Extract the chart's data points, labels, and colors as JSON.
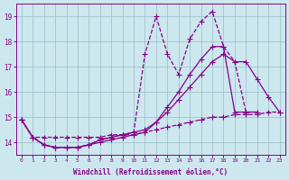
{
  "xlabel": "Windchill (Refroidissement éolien,°C)",
  "bg_color": "#cce8ee",
  "grid_color": "#99bbc8",
  "line_color": "#880088",
  "ylim": [
    13.5,
    19.5
  ],
  "xlim": [
    -0.5,
    23.5
  ],
  "yticks": [
    14,
    15,
    16,
    17,
    18,
    19
  ],
  "xticks": [
    0,
    1,
    2,
    3,
    4,
    5,
    6,
    7,
    8,
    9,
    10,
    11,
    12,
    13,
    14,
    15,
    16,
    17,
    18,
    19,
    20,
    21,
    22,
    23
  ],
  "series": [
    {
      "x": [
        0,
        1,
        2,
        3,
        4,
        5,
        6,
        7,
        8,
        9,
        10,
        11,
        12,
        13,
        14,
        15,
        16,
        17,
        18,
        19,
        20,
        21
      ],
      "y": [
        14.9,
        14.2,
        13.9,
        13.8,
        13.8,
        13.8,
        13.9,
        14.1,
        14.2,
        14.3,
        14.4,
        17.5,
        19.0,
        17.5,
        16.7,
        18.1,
        18.8,
        19.2,
        17.8,
        17.2,
        15.2,
        15.2
      ],
      "ls": "--",
      "mk": "+",
      "ms": 4,
      "lw": 0.9
    },
    {
      "x": [
        0,
        1,
        2,
        3,
        4,
        5,
        6,
        7,
        8,
        9,
        10,
        11,
        12,
        13,
        14,
        15,
        16,
        17,
        18,
        19,
        20,
        21,
        22,
        23
      ],
      "y": [
        14.9,
        14.2,
        13.9,
        13.8,
        13.8,
        13.8,
        13.9,
        14.1,
        14.2,
        14.3,
        14.4,
        14.5,
        14.8,
        15.2,
        15.7,
        16.2,
        16.7,
        17.2,
        17.5,
        17.2,
        17.2,
        16.5,
        15.8,
        15.2
      ],
      "ls": "-",
      "mk": "+",
      "ms": 4,
      "lw": 0.9
    },
    {
      "x": [
        0,
        1,
        2,
        3,
        4,
        5,
        6,
        7,
        8,
        9,
        10,
        11,
        12,
        13,
        14,
        15,
        16,
        17,
        18,
        19,
        20,
        21
      ],
      "y": [
        14.9,
        14.2,
        13.9,
        13.8,
        13.8,
        13.8,
        13.9,
        14.0,
        14.1,
        14.2,
        14.3,
        14.4,
        14.8,
        15.4,
        16.0,
        16.7,
        17.3,
        17.8,
        17.8,
        15.2,
        15.2,
        15.2
      ],
      "ls": "-",
      "mk": "+",
      "ms": 4,
      "lw": 0.9
    },
    {
      "x": [
        0,
        1,
        2,
        3,
        4,
        5,
        6,
        7,
        8,
        9,
        10,
        11,
        12,
        13,
        14,
        15,
        16,
        17,
        18,
        19,
        20,
        21,
        22,
        23
      ],
      "y": [
        14.9,
        14.2,
        14.2,
        14.2,
        14.2,
        14.2,
        14.2,
        14.2,
        14.3,
        14.3,
        14.3,
        14.4,
        14.5,
        14.6,
        14.7,
        14.8,
        14.9,
        15.0,
        15.0,
        15.1,
        15.1,
        15.1,
        15.2,
        15.2
      ],
      "ls": "--",
      "mk": "+",
      "ms": 4,
      "lw": 0.9
    }
  ]
}
